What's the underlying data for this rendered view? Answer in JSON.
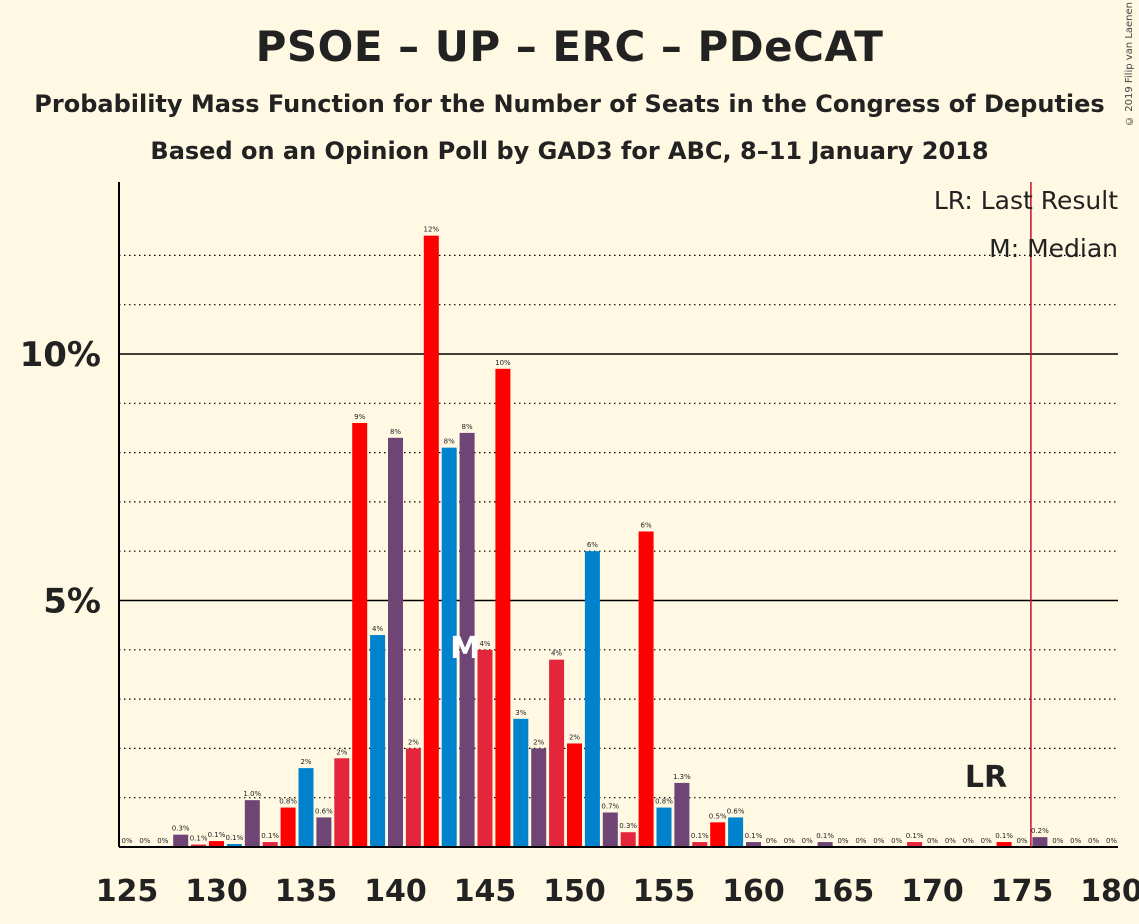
{
  "title": "PSOE – UP – ERC – PDeCAT",
  "subtitle": "Probability Mass Function for the Number of Seats in the Congress of Deputies",
  "subtitle2": "Based on an Opinion Poll by GAD3 for ABC, 8–11 January 2018",
  "copyright": "© 2019 Filip van Laenen",
  "legend": {
    "lr": "LR: Last Result",
    "median": "M: Median"
  },
  "markers": {
    "lr_label": "LR",
    "median_label": "M",
    "last_result_seat": 176,
    "median_seat": 144
  },
  "colors": {
    "crimson": "#E3263B",
    "red": "#FF0000",
    "blue": "#0083CC",
    "purple": "#6E4574",
    "lr_line": "#C0102A",
    "background": "#FFF8E3"
  },
  "chart_data": {
    "type": "bar",
    "xlabel": "",
    "ylabel": "",
    "x_ticks": [
      125,
      130,
      135,
      140,
      145,
      150,
      155,
      160,
      165,
      170,
      175,
      180
    ],
    "y_ticks": [
      {
        "value": 5,
        "label": "5%"
      },
      {
        "value": 10,
        "label": "10%"
      }
    ],
    "ylim": [
      0,
      13.5
    ],
    "xlim": [
      125,
      180
    ],
    "grid": "dotted every 1%, solid at 5% and 10%",
    "bars": [
      {
        "seat": 125,
        "value": 0,
        "label": "0%"
      },
      {
        "seat": 126,
        "value": 0,
        "label": "0%"
      },
      {
        "seat": 127,
        "value": 0,
        "label": "0%"
      },
      {
        "seat": 128,
        "value": 0.25,
        "label": "0.3%"
      },
      {
        "seat": 129,
        "value": 0.05,
        "label": "0.1%"
      },
      {
        "seat": 130,
        "value": 0.12,
        "label": "0.1%"
      },
      {
        "seat": 131,
        "value": 0.06,
        "label": "0.1%"
      },
      {
        "seat": 132,
        "value": 0.95,
        "label": "1.0%"
      },
      {
        "seat": 133,
        "value": 0.1,
        "label": "0.1%"
      },
      {
        "seat": 134,
        "value": 0.8,
        "label": "0.8%"
      },
      {
        "seat": 135,
        "value": 1.6,
        "label": "2%"
      },
      {
        "seat": 136,
        "value": 0.6,
        "label": "0.6%"
      },
      {
        "seat": 137,
        "value": 1.8,
        "label": "2%"
      },
      {
        "seat": 138,
        "value": 8.6,
        "label": "9%"
      },
      {
        "seat": 139,
        "value": 4.3,
        "label": "4%"
      },
      {
        "seat": 140,
        "value": 8.3,
        "label": "8%"
      },
      {
        "seat": 141,
        "value": 2.0,
        "label": "2%"
      },
      {
        "seat": 142,
        "value": 12.4,
        "label": "12%"
      },
      {
        "seat": 143,
        "value": 8.1,
        "label": "8%"
      },
      {
        "seat": 144,
        "value": 8.4,
        "label": "8%"
      },
      {
        "seat": 145,
        "value": 4.0,
        "label": "4%"
      },
      {
        "seat": 146,
        "value": 9.7,
        "label": "10%"
      },
      {
        "seat": 147,
        "value": 2.6,
        "label": "3%"
      },
      {
        "seat": 148,
        "value": 2.0,
        "label": "2%"
      },
      {
        "seat": 149,
        "value": 3.8,
        "label": "4%"
      },
      {
        "seat": 150,
        "value": 2.1,
        "label": "2%"
      },
      {
        "seat": 151,
        "value": 6.0,
        "label": "6%"
      },
      {
        "seat": 152,
        "value": 0.7,
        "label": "0.7%"
      },
      {
        "seat": 153,
        "value": 0.3,
        "label": "0.3%"
      },
      {
        "seat": 154,
        "value": 6.4,
        "label": "6%"
      },
      {
        "seat": 155,
        "value": 0.8,
        "label": "0.8%"
      },
      {
        "seat": 156,
        "value": 1.3,
        "label": "1.3%"
      },
      {
        "seat": 157,
        "value": 0.1,
        "label": "0.1%"
      },
      {
        "seat": 158,
        "value": 0.5,
        "label": "0.5%"
      },
      {
        "seat": 159,
        "value": 0.6,
        "label": "0.6%"
      },
      {
        "seat": 160,
        "value": 0.1,
        "label": "0.1%"
      },
      {
        "seat": 161,
        "value": 0,
        "label": "0%"
      },
      {
        "seat": 162,
        "value": 0,
        "label": "0%"
      },
      {
        "seat": 163,
        "value": 0,
        "label": "0%"
      },
      {
        "seat": 164,
        "value": 0.1,
        "label": "0.1%"
      },
      {
        "seat": 165,
        "value": 0,
        "label": "0%"
      },
      {
        "seat": 166,
        "value": 0,
        "label": "0%"
      },
      {
        "seat": 167,
        "value": 0,
        "label": "0%"
      },
      {
        "seat": 168,
        "value": 0,
        "label": "0%"
      },
      {
        "seat": 169,
        "value": 0.1,
        "label": "0.1%"
      },
      {
        "seat": 170,
        "value": 0,
        "label": "0%"
      },
      {
        "seat": 171,
        "value": 0,
        "label": "0%"
      },
      {
        "seat": 172,
        "value": 0,
        "label": "0%"
      },
      {
        "seat": 173,
        "value": 0,
        "label": "0%"
      },
      {
        "seat": 174,
        "value": 0.1,
        "label": "0.1%"
      },
      {
        "seat": 175,
        "value": 0,
        "label": "0%"
      },
      {
        "seat": 176,
        "value": 0.2,
        "label": "0.2%"
      },
      {
        "seat": 177,
        "value": 0,
        "label": "0%"
      },
      {
        "seat": 178,
        "value": 0,
        "label": "0%"
      },
      {
        "seat": 179,
        "value": 0,
        "label": "0%"
      },
      {
        "seat": 180,
        "value": 0,
        "label": "0%"
      }
    ]
  }
}
